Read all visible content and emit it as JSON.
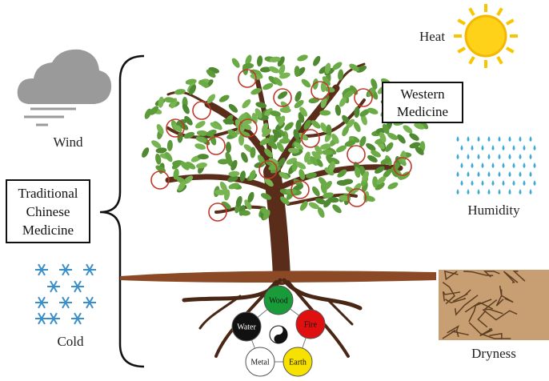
{
  "labels": {
    "heat": "Heat",
    "wind": "Wind",
    "humidity": "Humidity",
    "cold": "Cold",
    "dryness": "Dryness"
  },
  "boxes": {
    "tcm": [
      "Traditional",
      "Chinese",
      "Medicine"
    ],
    "western": [
      "Western",
      "Medicine"
    ]
  },
  "elements": [
    {
      "label": "Wood"
    },
    {
      "label": "Water"
    },
    {
      "label": "Fire"
    },
    {
      "label": "Metal"
    },
    {
      "label": "Earth"
    }
  ]
}
